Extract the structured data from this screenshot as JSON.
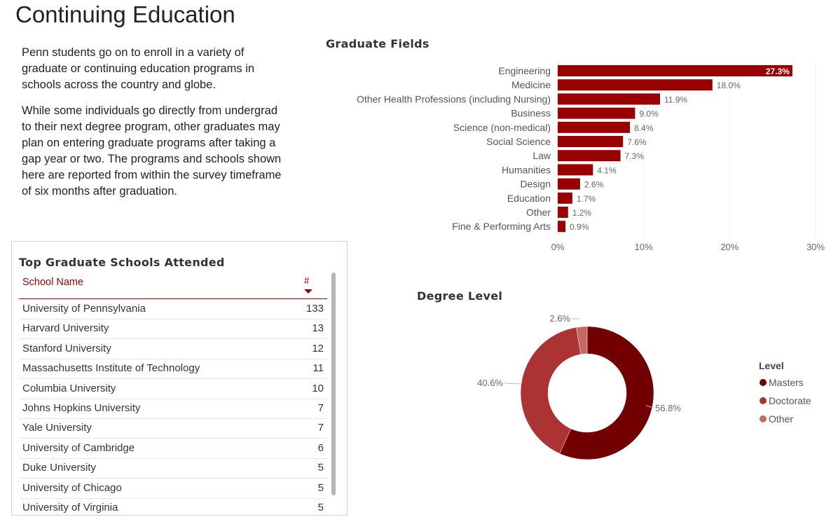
{
  "page": {
    "title": "Continuing Education",
    "intro": [
      "Penn students go on to enroll in a variety of graduate or continuing education programs in schools across the country and globe.",
      "While some individuals go directly from undergrad to their next degree program, other graduates may plan on entering graduate programs after taking a gap year or two. The programs and schools shown here are reported from within the survey timeframe of six months after graduation."
    ]
  },
  "table": {
    "title": "Top Graduate Schools Attended",
    "col_name": "School Name",
    "col_count": "#",
    "rows": [
      {
        "name": "University of Pennsylvania",
        "count": "133"
      },
      {
        "name": "Harvard University",
        "count": "13"
      },
      {
        "name": "Stanford University",
        "count": "12"
      },
      {
        "name": "Massachusetts Institute of Technology",
        "count": "11"
      },
      {
        "name": "Columbia University",
        "count": "10"
      },
      {
        "name": "Johns Hopkins University",
        "count": "7"
      },
      {
        "name": "Yale University",
        "count": "7"
      },
      {
        "name": "University of Cambridge",
        "count": "6"
      },
      {
        "name": "Duke University",
        "count": "5"
      },
      {
        "name": "University of Chicago",
        "count": "5"
      },
      {
        "name": "University of Virginia",
        "count": "5"
      }
    ]
  },
  "chart_data": [
    {
      "type": "bar",
      "title": "Graduate Fields",
      "orientation": "horizontal",
      "categories": [
        "Engineering",
        "Medicine",
        "Other Health Professions (including Nursing)",
        "Business",
        "Science (non-medical)",
        "Social Science",
        "Law",
        "Humanities",
        "Design",
        "Education",
        "Other",
        "Fine & Performing Arts"
      ],
      "values": [
        27.3,
        18.0,
        11.9,
        9.0,
        8.4,
        7.6,
        7.3,
        4.1,
        2.6,
        1.7,
        1.2,
        0.9
      ],
      "labels": [
        "27.3%",
        "18.0%",
        "11.9%",
        "9.0%",
        "8.4%",
        "7.6%",
        "7.3%",
        "4.1%",
        "2.6%",
        "1.7%",
        "1.2%",
        "0.9%"
      ],
      "xlim": [
        0,
        30
      ],
      "xticks": [
        "0%",
        "10%",
        "20%",
        "30%"
      ],
      "grid": true,
      "color": "#990000"
    },
    {
      "type": "pie",
      "title": "Degree Level",
      "donut": true,
      "legend_title": "Level",
      "legend": "right",
      "slices": [
        {
          "label": "Masters",
          "value": 56.8,
          "text": "56.8%",
          "color": "#730000"
        },
        {
          "label": "Doctorate",
          "value": 40.6,
          "text": "40.6%",
          "color": "#ab3333"
        },
        {
          "label": "Other",
          "value": 2.6,
          "text": "2.6%",
          "color": "#c96666"
        }
      ]
    }
  ]
}
